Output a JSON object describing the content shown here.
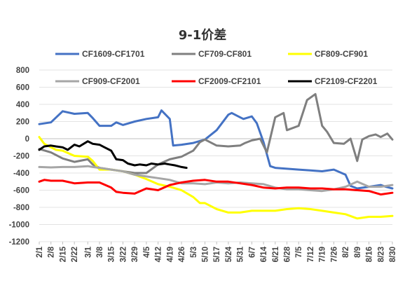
{
  "chart_data": {
    "type": "line",
    "title": "9-1价差",
    "ylim": [
      -1200,
      800
    ],
    "yticks": [
      800,
      600,
      400,
      200,
      0,
      -200,
      -400,
      -600,
      -800,
      -1000,
      -1200
    ],
    "x_tick_labels": [
      "2/1",
      "2/8",
      "2/15",
      "2/22",
      "3/1",
      "3/8",
      "3/15",
      "3/22",
      "3/29",
      "4/5",
      "4/12",
      "4/19",
      "4/26",
      "5/3",
      "5/10",
      "5/17",
      "5/24",
      "5/31",
      "6/7",
      "6/14",
      "6/21",
      "6/28",
      "7/5",
      "7/12",
      "7/19",
      "7/26",
      "8/2",
      "8/9",
      "8/16",
      "8/23",
      "8/30"
    ],
    "grid": "horizontal",
    "legend_position": "top",
    "series": [
      {
        "name": "CF1609-CF1701",
        "color": "#4472C4",
        "x": [
          "2/1",
          "2/8",
          "2/15",
          "2/22",
          "3/1",
          "3/4",
          "3/8",
          "3/15",
          "3/18",
          "3/22",
          "3/29",
          "4/5",
          "4/12",
          "4/14",
          "4/19",
          "4/21",
          "4/26",
          "5/3",
          "5/10",
          "5/17",
          "5/24",
          "5/26",
          "5/31",
          "6/2",
          "6/7",
          "6/10",
          "6/14",
          "6/18",
          "6/21",
          "6/28",
          "7/5",
          "7/12",
          "7/19",
          "7/26",
          "8/2",
          "8/5",
          "8/9",
          "8/16",
          "8/23",
          "8/26",
          "8/30"
        ],
        "y": [
          170,
          190,
          320,
          290,
          300,
          240,
          150,
          150,
          190,
          160,
          200,
          230,
          250,
          330,
          230,
          -80,
          -70,
          -50,
          -10,
          100,
          280,
          300,
          250,
          230,
          260,
          180,
          -40,
          -320,
          -340,
          -350,
          -360,
          -370,
          -380,
          -360,
          -420,
          -550,
          -580,
          -560,
          -540,
          -560,
          -580
        ]
      },
      {
        "name": "CF709-CF801",
        "color": "#7F7F7F",
        "x": [
          "2/1",
          "2/8",
          "2/15",
          "2/22",
          "3/1",
          "3/4",
          "3/8",
          "3/15",
          "3/22",
          "3/29",
          "4/5",
          "4/12",
          "4/19",
          "4/26",
          "5/3",
          "5/7",
          "5/10",
          "5/17",
          "5/24",
          "5/31",
          "6/3",
          "6/7",
          "6/12",
          "6/16",
          "6/21",
          "6/26",
          "6/28",
          "7/5",
          "7/10",
          "7/15",
          "7/19",
          "7/22",
          "7/26",
          "8/1",
          "8/5",
          "8/9",
          "8/12",
          "8/16",
          "8/20",
          "8/23",
          "8/27",
          "8/30"
        ],
        "y": [
          -120,
          -160,
          -230,
          -270,
          -240,
          -300,
          -340,
          -360,
          -380,
          -400,
          -400,
          -300,
          -240,
          -210,
          -140,
          -40,
          -10,
          -80,
          -90,
          -80,
          -50,
          -20,
          0,
          -160,
          250,
          300,
          100,
          150,
          450,
          520,
          150,
          80,
          -50,
          -60,
          0,
          -260,
          -10,
          30,
          50,
          20,
          60,
          -10
        ]
      },
      {
        "name": "CF809-CF901",
        "color": "#FFFF00",
        "x": [
          "2/1",
          "2/4",
          "2/8",
          "2/11",
          "2/15",
          "2/22",
          "3/1",
          "3/4",
          "3/8",
          "3/15",
          "3/22",
          "3/29",
          "4/5",
          "4/12",
          "4/19",
          "4/26",
          "5/3",
          "5/7",
          "5/10",
          "5/17",
          "5/24",
          "5/31",
          "6/7",
          "6/14",
          "6/21",
          "6/28",
          "7/5",
          "7/12",
          "7/19",
          "7/26",
          "8/2",
          "8/9",
          "8/16",
          "8/23",
          "8/30"
        ],
        "y": [
          20,
          -60,
          -100,
          -130,
          -140,
          -200,
          -210,
          -260,
          -360,
          -360,
          -380,
          -420,
          -470,
          -530,
          -560,
          -600,
          -680,
          -750,
          -750,
          -820,
          -860,
          -860,
          -840,
          -840,
          -840,
          -820,
          -810,
          -820,
          -840,
          -860,
          -880,
          -930,
          -910,
          -910,
          -900
        ]
      },
      {
        "name": "CF909-CF2001",
        "color": "#A6A6A6",
        "x": [
          "2/1",
          "2/8",
          "2/15",
          "2/22",
          "3/1",
          "3/4",
          "3/8",
          "3/15",
          "3/22",
          "3/29",
          "4/5",
          "4/12",
          "4/19",
          "4/26",
          "5/3",
          "5/10",
          "5/17",
          "5/24",
          "5/31",
          "6/7",
          "6/14",
          "6/21",
          "6/28",
          "7/5",
          "7/12",
          "7/19",
          "7/26",
          "8/2",
          "8/9",
          "8/16",
          "8/23",
          "8/30"
        ],
        "y": [
          -330,
          -335,
          -330,
          -330,
          -320,
          -330,
          -340,
          -360,
          -380,
          -420,
          -440,
          -460,
          -480,
          -520,
          -520,
          -530,
          -510,
          -520,
          -510,
          -520,
          -530,
          -570,
          -590,
          -590,
          -600,
          -610,
          -590,
          -560,
          -500,
          -560,
          -560,
          -540
        ]
      },
      {
        "name": "CF2009-CF2101",
        "color": "#FF0000",
        "x": [
          "2/1",
          "2/4",
          "2/8",
          "2/15",
          "2/22",
          "3/1",
          "3/8",
          "3/15",
          "3/18",
          "3/22",
          "3/29",
          "4/5",
          "4/12",
          "4/19",
          "4/26",
          "5/3",
          "5/10",
          "5/17",
          "5/24",
          "5/31",
          "6/7",
          "6/14",
          "6/21",
          "6/28",
          "7/5",
          "7/12",
          "7/19",
          "7/26",
          "8/2",
          "8/9",
          "8/16",
          "8/23",
          "8/30"
        ],
        "y": [
          -500,
          -480,
          -490,
          -490,
          -520,
          -510,
          -510,
          -570,
          -620,
          -630,
          -640,
          -580,
          -600,
          -540,
          -510,
          -490,
          -480,
          -500,
          -500,
          -520,
          -540,
          -570,
          -580,
          -570,
          -570,
          -580,
          -580,
          -590,
          -590,
          -600,
          -610,
          -650,
          -630
        ]
      },
      {
        "name": "CF2109-CF2201",
        "color": "#000000",
        "x": [
          "2/1",
          "2/4",
          "2/8",
          "2/11",
          "2/15",
          "2/18",
          "2/22",
          "2/25",
          "3/1",
          "3/4",
          "3/8",
          "3/11",
          "3/15",
          "3/18",
          "3/22",
          "3/25",
          "3/29",
          "4/1",
          "4/5",
          "4/8",
          "4/12",
          "4/16",
          "4/19",
          "4/22",
          "4/26",
          "4/29"
        ],
        "y": [
          -130,
          -90,
          -80,
          -90,
          -100,
          -130,
          -70,
          -90,
          -30,
          -60,
          -70,
          -100,
          -140,
          -240,
          -250,
          -290,
          -310,
          -300,
          -310,
          -290,
          -300,
          -290,
          -300,
          -310,
          -330,
          -340
        ]
      }
    ]
  }
}
